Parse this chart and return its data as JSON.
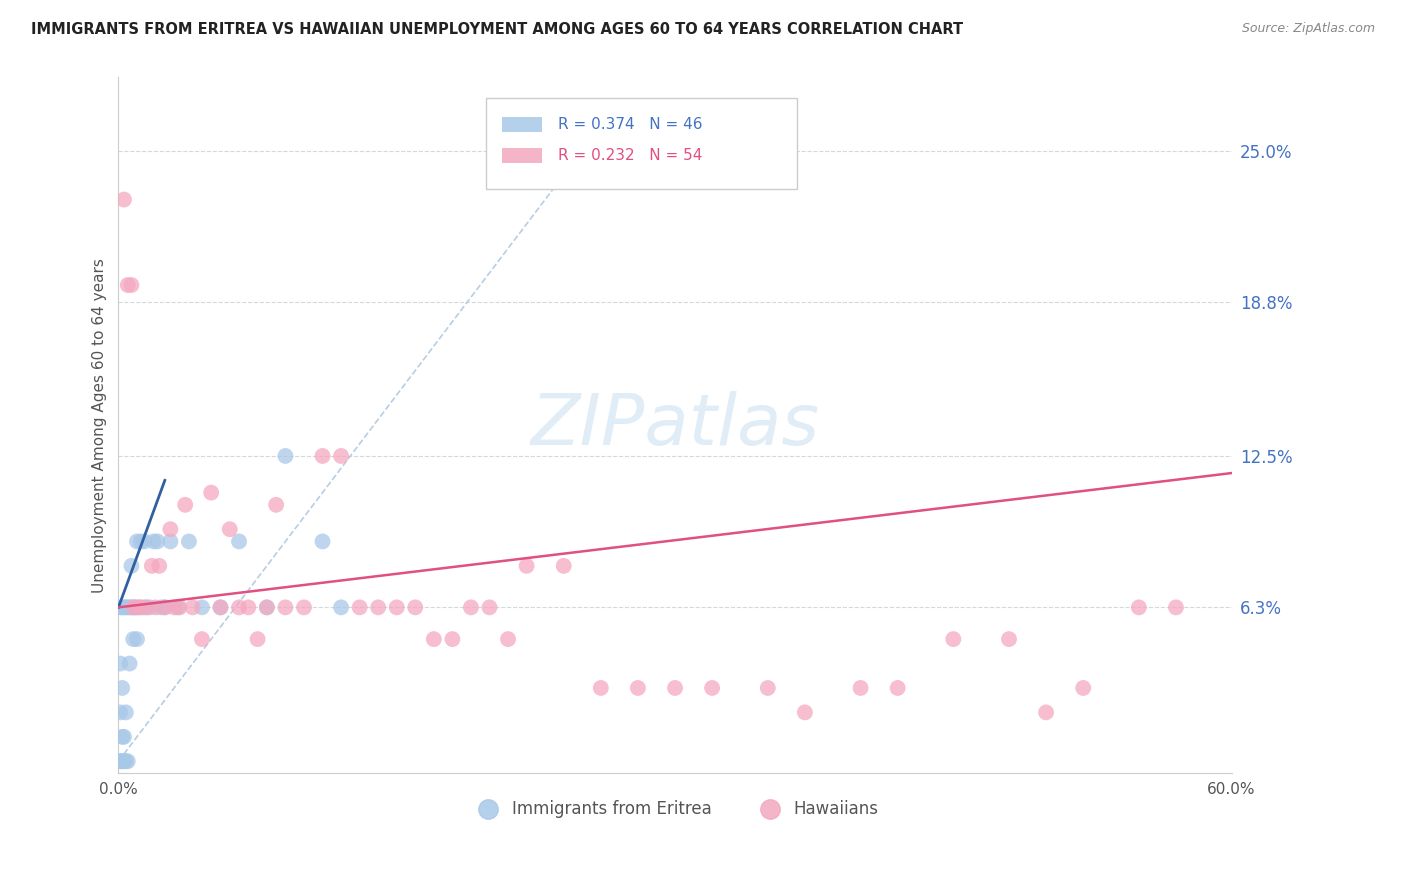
{
  "title": "IMMIGRANTS FROM ERITREA VS HAWAIIAN UNEMPLOYMENT AMONG AGES 60 TO 64 YEARS CORRELATION CHART",
  "source": "Source: ZipAtlas.com",
  "ylabel": "Unemployment Among Ages 60 to 64 years",
  "xlim": [
    0.0,
    0.6
  ],
  "ylim": [
    -0.005,
    0.28
  ],
  "ytick_labels": [
    "25.0%",
    "18.8%",
    "12.5%",
    "6.3%"
  ],
  "ytick_values": [
    0.25,
    0.188,
    0.125,
    0.063
  ],
  "xtick_labels": [
    "0.0%",
    "",
    "",
    "",
    "",
    "60.0%"
  ],
  "xtick_values": [
    0.0,
    0.12,
    0.24,
    0.36,
    0.48,
    0.6
  ],
  "blue_color": "#a8c8e8",
  "pink_color": "#f4a8c0",
  "blue_line_color": "#3060a0",
  "pink_line_color": "#e05080",
  "dashed_line_color": "#b0c8e0",
  "watermark": "ZIPatlas",
  "background_color": "#ffffff",
  "grid_color": "#d0d8e0",
  "blue_legend_text": "R = 0.374   N = 46",
  "pink_legend_text": "R = 0.232   N = 54",
  "blue_legend_color": "#4472c4",
  "pink_legend_color": "#e05080",
  "bottom_legend": [
    "Immigrants from Eritrea",
    "Hawaiians"
  ],
  "blue_line_x0": 0.0,
  "blue_line_y0": 0.063,
  "blue_line_x1": 0.025,
  "blue_line_y1": 0.115,
  "pink_line_x0": 0.0,
  "pink_line_y0": 0.063,
  "pink_line_x1": 0.6,
  "pink_line_y1": 0.118,
  "dash_line_x0": 0.0,
  "dash_line_y0": 0.0,
  "dash_line_x1": 0.27,
  "dash_line_y1": 0.27
}
